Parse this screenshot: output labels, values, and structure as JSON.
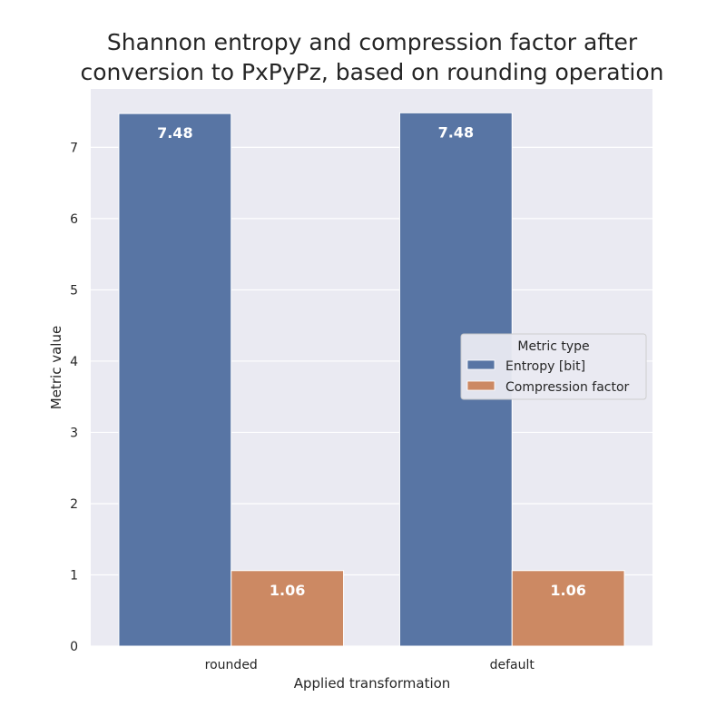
{
  "chart_data": {
    "type": "bar",
    "title_lines": [
      "Shannon entropy and compression factor after",
      "conversion to PxPyPz, based on rounding operation"
    ],
    "xlabel": "Applied transformation",
    "ylabel": "Metric value",
    "categories": [
      "rounded",
      "default"
    ],
    "series": [
      {
        "name": "Entropy [bit]",
        "values": [
          7.475,
          7.485
        ],
        "labels": [
          "7.48",
          "7.48"
        ],
        "color": "#5875a4"
      },
      {
        "name": "Compression factor",
        "values": [
          1.06,
          1.06
        ],
        "labels": [
          "1.06",
          "1.06"
        ],
        "color": "#cc8963"
      }
    ],
    "ylim": [
      0,
      7.82
    ],
    "yticks": [
      0,
      1,
      2,
      3,
      4,
      5,
      6,
      7
    ],
    "grid": true,
    "legend": {
      "title": "Metric type",
      "placement": "center-right"
    },
    "colors": {
      "background": "#eaeaf2",
      "grid": "#ffffff",
      "text": "#262626"
    }
  }
}
